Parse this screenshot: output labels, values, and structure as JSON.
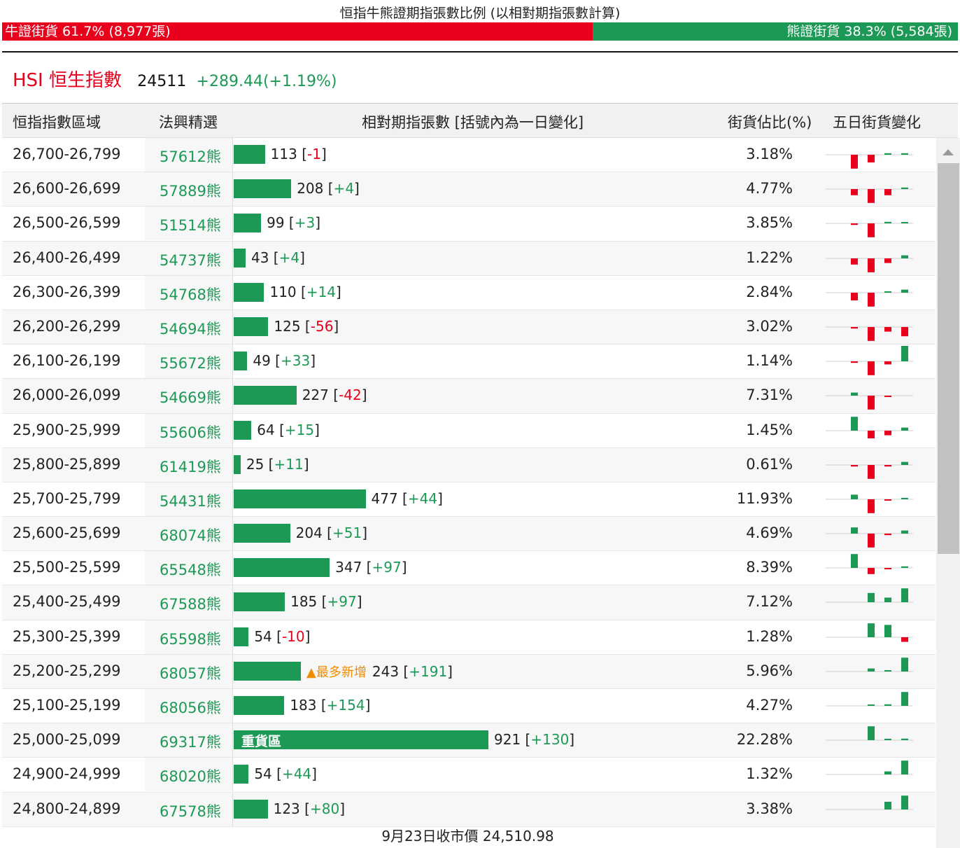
{
  "title": "恒指牛熊證期指張數比例 (以相對期指張數計算)",
  "bull_summary": "牛證街貨 61.7% (8,977張)",
  "bear_summary": "熊證街貨 38.3% (5,584張)",
  "index": {
    "name": "HSI 恒生指數",
    "last": "24511",
    "change": "+289.44(+1.19%)"
  },
  "headers": {
    "range": "恒指指數區域",
    "cbbc": "法興精選",
    "contracts": "相對期指張數 [括號內為一日變化]",
    "pct": "街貨佔比(%)",
    "five_day": "五日街貨變化"
  },
  "colors": {
    "bull": "#e8001c",
    "bear": "#1c9a55",
    "highlight": "#f08c00"
  },
  "rows": [
    {
      "range": "26,700-26,799",
      "cbbc": "57612熊",
      "contracts": 113,
      "change": "-1",
      "pct": "3.18%",
      "five_day": [
        -0.9,
        -0.5,
        0.1,
        0.1,
        0
      ]
    },
    {
      "range": "26,600-26,699",
      "cbbc": "57889熊",
      "contracts": 208,
      "change": "+4",
      "pct": "4.77%",
      "five_day": [
        -0.4,
        -0.9,
        -0.4,
        0.1,
        0
      ]
    },
    {
      "range": "26,500-26,599",
      "cbbc": "51514熊",
      "contracts": 99,
      "change": "+3",
      "pct": "3.85%",
      "five_day": [
        -0.1,
        -0.9,
        0.1,
        0.05,
        0
      ]
    },
    {
      "range": "26,400-26,499",
      "cbbc": "54737熊",
      "contracts": 43,
      "change": "+4",
      "pct": "1.22%",
      "five_day": [
        -0.4,
        -0.9,
        -0.3,
        0.2,
        0
      ]
    },
    {
      "range": "26,300-26,399",
      "cbbc": "54768熊",
      "contracts": 110,
      "change": "+14",
      "pct": "2.84%",
      "five_day": [
        -0.5,
        -0.9,
        0.05,
        0.2,
        0
      ]
    },
    {
      "range": "26,200-26,299",
      "cbbc": "54694熊",
      "contracts": 125,
      "change": "-56",
      "pct": "3.02%",
      "five_day": [
        -0.1,
        -0.9,
        -0.3,
        -0.6,
        0
      ]
    },
    {
      "range": "26,100-26,199",
      "cbbc": "55672熊",
      "contracts": 49,
      "change": "+33",
      "pct": "1.14%",
      "five_day": [
        -0.1,
        -0.9,
        -0.2,
        1.0,
        0
      ]
    },
    {
      "range": "26,000-26,099",
      "cbbc": "54669熊",
      "contracts": 227,
      "change": "-42",
      "pct": "7.31%",
      "five_day": [
        0.2,
        -0.9,
        -0.05,
        0,
        0
      ]
    },
    {
      "range": "25,900-25,999",
      "cbbc": "55606熊",
      "contracts": 64,
      "change": "+15",
      "pct": "1.45%",
      "five_day": [
        0.9,
        -0.5,
        -0.3,
        0.2,
        0
      ]
    },
    {
      "range": "25,800-25,899",
      "cbbc": "61419熊",
      "contracts": 25,
      "change": "+11",
      "pct": "0.61%",
      "five_day": [
        -0.1,
        -0.9,
        -0.1,
        0.2,
        0
      ]
    },
    {
      "range": "25,700-25,799",
      "cbbc": "54431熊",
      "contracts": 477,
      "change": "+44",
      "pct": "11.93%",
      "five_day": [
        0.3,
        -0.9,
        -0.05,
        0.05,
        0
      ]
    },
    {
      "range": "25,600-25,699",
      "cbbc": "68074熊",
      "contracts": 204,
      "change": "+51",
      "pct": "4.69%",
      "five_day": [
        0.4,
        -0.9,
        -0.1,
        0.2,
        0
      ]
    },
    {
      "range": "25,500-25,599",
      "cbbc": "65548熊",
      "contracts": 347,
      "change": "+97",
      "pct": "8.39%",
      "five_day": [
        0.9,
        -0.4,
        -0.05,
        0.1,
        0
      ]
    },
    {
      "range": "25,400-25,499",
      "cbbc": "67588熊",
      "contracts": 185,
      "change": "+97",
      "pct": "7.12%",
      "five_day": [
        0,
        0.6,
        0.3,
        0.9,
        0
      ]
    },
    {
      "range": "25,300-25,399",
      "cbbc": "65598熊",
      "contracts": 54,
      "change": "-10",
      "pct": "1.28%",
      "five_day": [
        0,
        0.9,
        0.8,
        -0.3,
        0
      ]
    },
    {
      "range": "25,200-25,299",
      "cbbc": "68057熊",
      "contracts": 243,
      "change": "+191",
      "pct": "5.96%",
      "five_day": [
        0,
        0.2,
        0.05,
        0.9,
        0
      ],
      "tag": "最多新增"
    },
    {
      "range": "25,100-25,199",
      "cbbc": "68056熊",
      "contracts": 183,
      "change": "+154",
      "pct": "4.27%",
      "five_day": [
        0,
        0.05,
        0.1,
        0.9,
        0
      ]
    },
    {
      "range": "25,000-25,099",
      "cbbc": "69317熊",
      "contracts": 921,
      "change": "+130",
      "pct": "22.28%",
      "five_day": [
        0,
        0.9,
        0.05,
        0.1,
        0
      ],
      "label": "重貨區"
    },
    {
      "range": "24,900-24,999",
      "cbbc": "68020熊",
      "contracts": 54,
      "change": "+44",
      "pct": "1.32%",
      "five_day": [
        0,
        0,
        0.2,
        0.9,
        0
      ]
    },
    {
      "range": "24,800-24,899",
      "cbbc": "67578熊",
      "contracts": 123,
      "change": "+80",
      "pct": "3.38%",
      "five_day": [
        0,
        0,
        0.5,
        0.9,
        0
      ]
    }
  ],
  "footer": "9月23日收市價 24,510.98"
}
